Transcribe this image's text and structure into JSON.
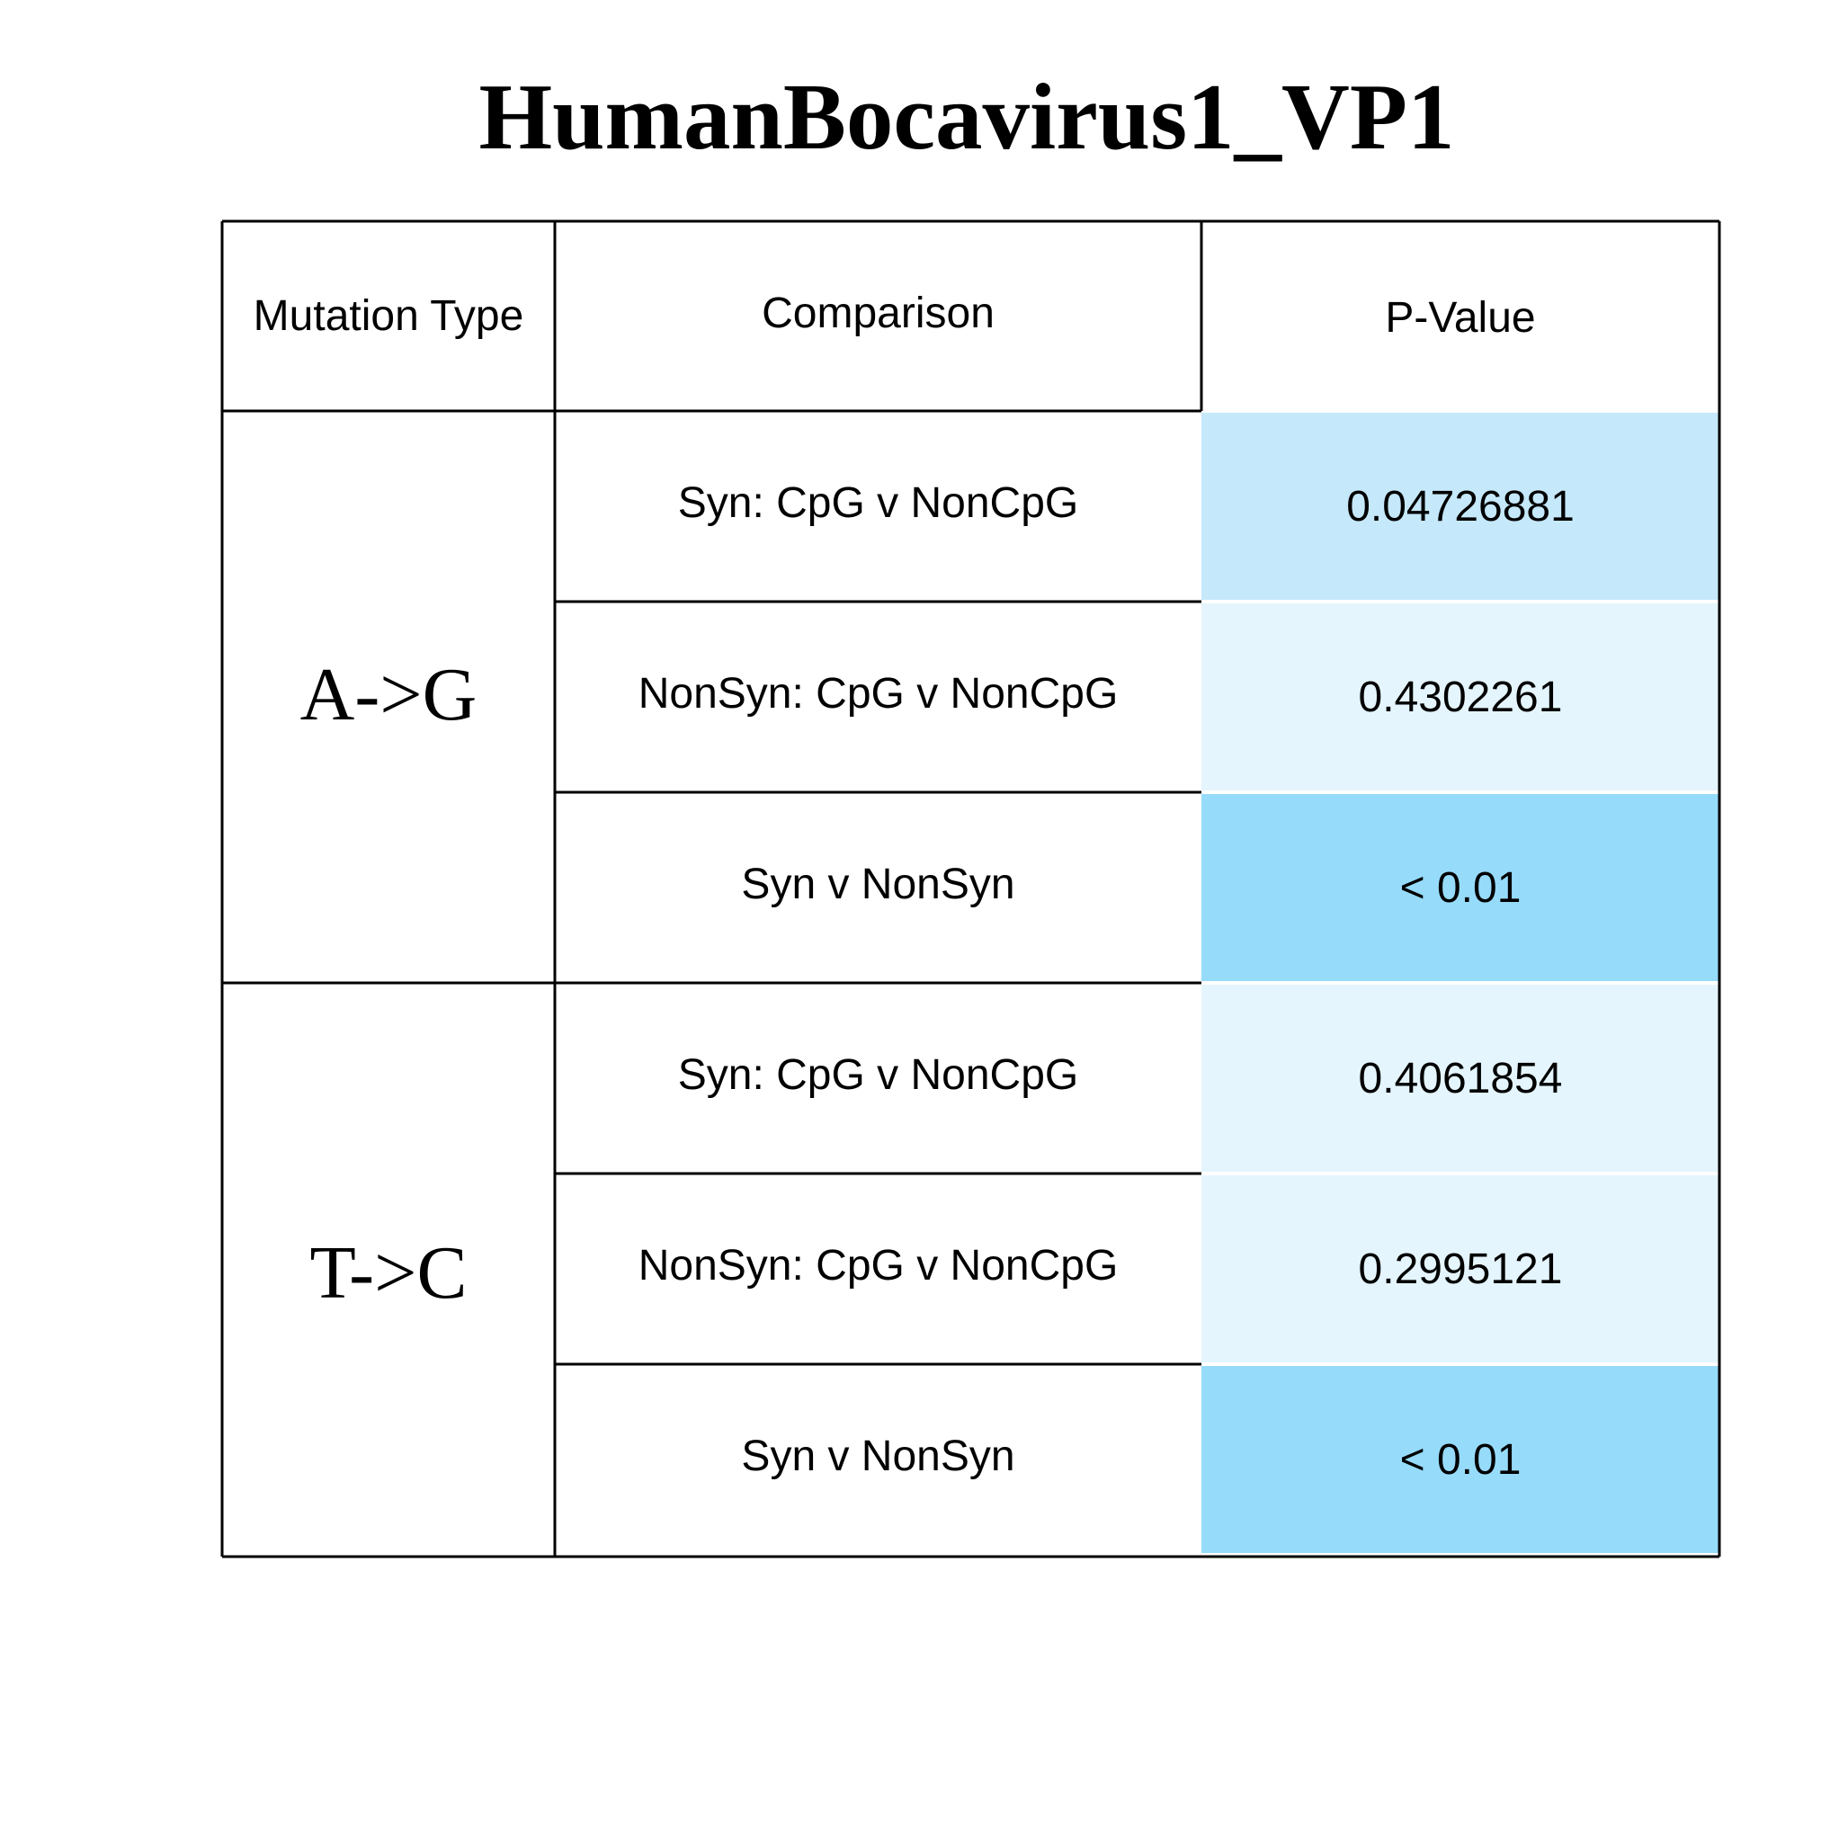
{
  "chart_data": {
    "type": "table",
    "title": "HumanBocavirus1_VP1",
    "columns": [
      "Mutation Type",
      "Comparison",
      "P-Value"
    ],
    "groups": [
      {
        "mutation": "A->G",
        "rows": [
          {
            "comparison": "Syn: CpG v NonCpG",
            "p_value": "0.04726881",
            "color": "#c5e8fa"
          },
          {
            "comparison": "NonSyn: CpG v NonCpG",
            "p_value": "0.4302261",
            "color": "#e4f5fd"
          },
          {
            "comparison": "Syn v NonSyn",
            "p_value": "< 0.01",
            "color": "#97dbfa"
          }
        ]
      },
      {
        "mutation": "T->C",
        "rows": [
          {
            "comparison": "Syn: CpG v NonCpG",
            "p_value": "0.4061854",
            "color": "#e4f5fd"
          },
          {
            "comparison": "NonSyn: CpG v NonCpG",
            "p_value": "0.2995121",
            "color": "#e4f5fd"
          },
          {
            "comparison": "Syn v NonSyn",
            "p_value": "< 0.01",
            "color": "#97dbfa"
          }
        ]
      }
    ]
  }
}
